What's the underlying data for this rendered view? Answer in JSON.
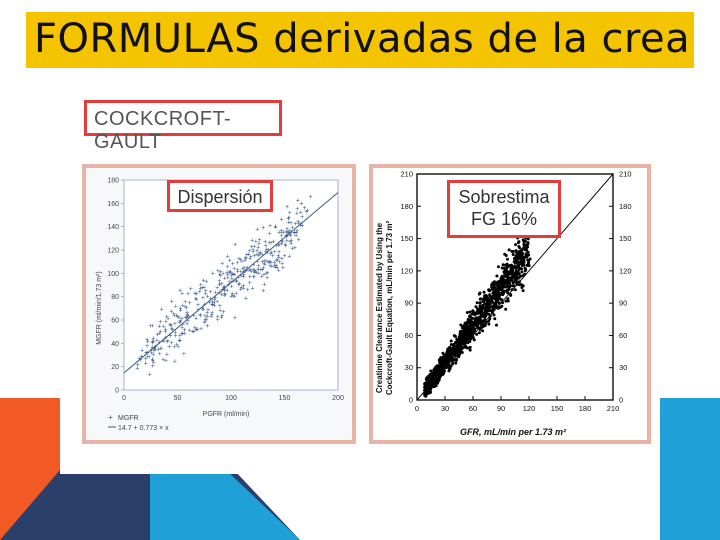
{
  "slide": {
    "title": "FORMULAS derivadas de la crea"
  },
  "formula_name": "COCKCROFT-GAULT",
  "left_plot": {
    "tag": "Dispersión",
    "x_ticks": [
      "0",
      "50",
      "100",
      "150",
      "200"
    ],
    "y_ticks": [
      "0",
      "20",
      "40",
      "60",
      "80",
      "100",
      "120",
      "140",
      "160",
      "180"
    ],
    "xlabel": "PGFR (ml/min)",
    "ylabel": "MGFR (ml/min/1.73 m²)",
    "legend_series": "MGFR",
    "legend_fit": "14.7 + 0.773 × x"
  },
  "right_plot": {
    "tag_line1": "Sobrestima",
    "tag_line2": "FG 16%",
    "x_ticks": [
      "0",
      "30",
      "60",
      "90",
      "120",
      "150",
      "180",
      "210"
    ],
    "y_ticks": [
      "0",
      "30",
      "60",
      "90",
      "120",
      "150",
      "180",
      "210"
    ],
    "xlabel": "GFR, mL/min per 1.73 m²",
    "ylabel_line1": "Creatinine Clearance Estimated by Using the",
    "ylabel_line2": "Cockcroft-Gault Equation, mL/min per 1.73 m²"
  },
  "colors": {
    "banner": "#f5c400",
    "highlight_border": "#e23c3c",
    "scatter_left": "#3a5a8c",
    "scatter_right": "#000000",
    "deco_orange": "#f15a24",
    "deco_navy": "#2b3f6b",
    "deco_blue": "#1fa0d6"
  }
}
